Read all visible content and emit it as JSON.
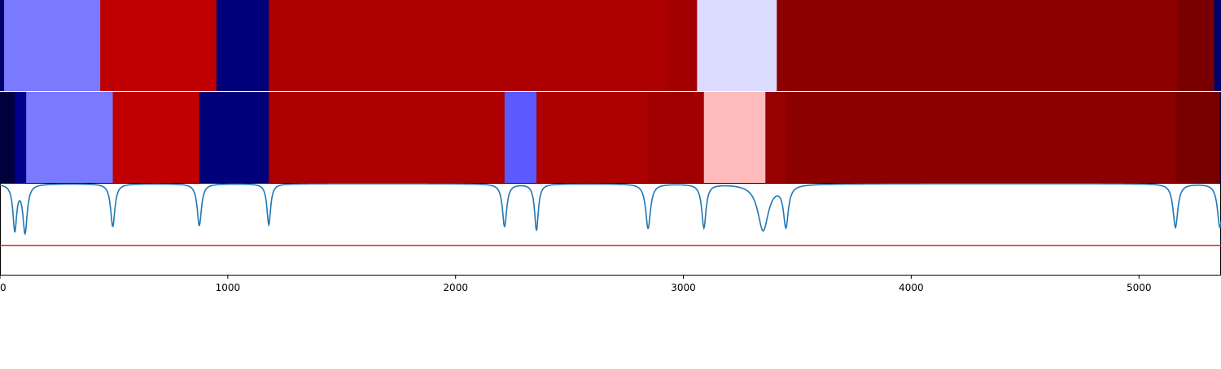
{
  "chart_data": {
    "type": "heatmap",
    "x_range": [
      0,
      5360
    ],
    "x_ticks": [
      0,
      1000,
      2000,
      3000,
      4000,
      5000
    ],
    "tracks": [
      {
        "segments": [
          {
            "start": 0,
            "end": 18,
            "color": "#000066"
          },
          {
            "start": 18,
            "end": 440,
            "color": "#7a7aff"
          },
          {
            "start": 440,
            "end": 950,
            "color": "#c00000"
          },
          {
            "start": 950,
            "end": 1180,
            "color": "#00007a"
          },
          {
            "start": 1180,
            "end": 2930,
            "color": "#ad0000"
          },
          {
            "start": 2930,
            "end": 3060,
            "color": "#a30000"
          },
          {
            "start": 3060,
            "end": 3410,
            "color": "#dcdcff"
          },
          {
            "start": 3410,
            "end": 5170,
            "color": "#8c0000"
          },
          {
            "start": 5170,
            "end": 5330,
            "color": "#7a0000"
          },
          {
            "start": 5330,
            "end": 5360,
            "color": "#000066"
          }
        ]
      },
      {
        "segments": [
          {
            "start": 0,
            "end": 65,
            "color": "#00003d"
          },
          {
            "start": 65,
            "end": 115,
            "color": "#00008a"
          },
          {
            "start": 115,
            "end": 495,
            "color": "#7a7aff"
          },
          {
            "start": 495,
            "end": 875,
            "color": "#c00000"
          },
          {
            "start": 875,
            "end": 1180,
            "color": "#00007a"
          },
          {
            "start": 1180,
            "end": 2215,
            "color": "#ad0000"
          },
          {
            "start": 2215,
            "end": 2355,
            "color": "#5a5aff"
          },
          {
            "start": 2355,
            "end": 2845,
            "color": "#ad0000"
          },
          {
            "start": 2845,
            "end": 3090,
            "color": "#a00000"
          },
          {
            "start": 3090,
            "end": 3360,
            "color": "#ffbbbb"
          },
          {
            "start": 3360,
            "end": 3450,
            "color": "#990000"
          },
          {
            "start": 3450,
            "end": 5160,
            "color": "#8c0000"
          },
          {
            "start": 5160,
            "end": 5355,
            "color": "#7a0000"
          },
          {
            "start": 5355,
            "end": 5360,
            "color": "#00003d"
          }
        ]
      }
    ],
    "line_ylim": [
      0,
      1
    ],
    "threshold": 0.32,
    "line_color": "#1f77b4",
    "threshold_color": "#e41a1c",
    "dips": [
      {
        "x": 65,
        "depth": 0.5,
        "width": 14
      },
      {
        "x": 110,
        "depth": 0.53,
        "width": 16
      },
      {
        "x": 495,
        "depth": 0.47,
        "width": 16
      },
      {
        "x": 875,
        "depth": 0.46,
        "width": 16
      },
      {
        "x": 1180,
        "depth": 0.45,
        "width": 14
      },
      {
        "x": 2215,
        "depth": 0.47,
        "width": 16
      },
      {
        "x": 2355,
        "depth": 0.51,
        "width": 14
      },
      {
        "x": 2845,
        "depth": 0.49,
        "width": 18
      },
      {
        "x": 3090,
        "depth": 0.48,
        "width": 16
      },
      {
        "x": 3350,
        "depth": 0.51,
        "width": 40
      },
      {
        "x": 3450,
        "depth": 0.45,
        "width": 18
      },
      {
        "x": 5160,
        "depth": 0.48,
        "width": 18
      },
      {
        "x": 5355,
        "depth": 0.48,
        "width": 18
      }
    ]
  }
}
